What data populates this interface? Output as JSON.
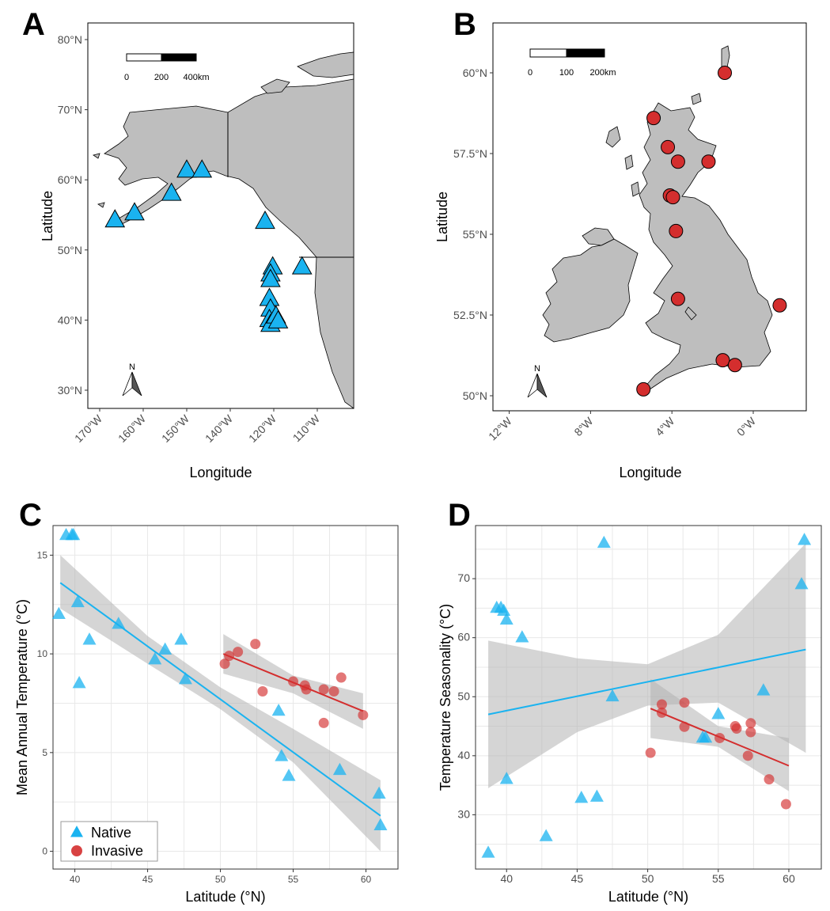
{
  "panels": {
    "a": {
      "label": "A",
      "xlabel": "Longitude",
      "ylabel": "Latitude",
      "xticks": [
        "170°W",
        "160°W",
        "150°W",
        "140°W",
        "120°W",
        "110°W"
      ],
      "yticks": [
        "80°N",
        "70°N",
        "60°N",
        "50°N",
        "40°N",
        "30°N"
      ],
      "scalebar": {
        "l0": "0",
        "l1": "200",
        "l2": "400km"
      }
    },
    "b": {
      "label": "B",
      "xlabel": "Longitude",
      "ylabel": "Latitude",
      "xticks": [
        "12°W",
        "8°W",
        "4°W",
        "0°W"
      ],
      "yticks": [
        "60°N",
        "57.5°N",
        "55°N",
        "52.5°N",
        "50°N"
      ],
      "scalebar": {
        "l0": "0",
        "l1": "100",
        "l2": "200km"
      }
    },
    "c": {
      "label": "C"
    },
    "d": {
      "label": "D"
    }
  },
  "north_arrow": "N",
  "colors": {
    "native": "#1ab3f0",
    "invasive": "#d42e2e",
    "land": "#bebebe",
    "ribbon": "#b3b3b3",
    "grid": "#e8e8e8"
  },
  "chart_data": [
    {
      "panel": "A",
      "type": "scatter",
      "xlabel": "Longitude",
      "ylabel": "Latitude",
      "series": [
        {
          "name": "Native",
          "marker": "triangle",
          "points": [
            [
              -166.5,
              54.2
            ],
            [
              -162,
              55.2
            ],
            [
              -153.5,
              58
            ],
            [
              -150,
              61.3
            ],
            [
              -146.5,
              61.3
            ],
            [
              -124,
              54
            ],
            [
              -120.5,
              47.5
            ],
            [
              -121.5,
              46.5
            ],
            [
              -121.5,
              45.7
            ],
            [
              -122,
              43
            ],
            [
              -121.5,
              41.5
            ],
            [
              -122,
              40
            ],
            [
              -121.5,
              39.3
            ],
            [
              -119.5,
              40.5
            ],
            [
              -119,
              39.8
            ],
            [
              -113.5,
              47.5
            ]
          ]
        }
      ]
    },
    {
      "panel": "B",
      "type": "scatter",
      "xlabel": "Longitude",
      "ylabel": "Latitude",
      "series": [
        {
          "name": "Invasive",
          "marker": "circle",
          "points": [
            [
              -4.9,
              58.6
            ],
            [
              -4.2,
              57.7
            ],
            [
              -3.7,
              57.25
            ],
            [
              -2.2,
              57.25
            ],
            [
              -1.4,
              60.0
            ],
            [
              -4.1,
              56.2
            ],
            [
              -3.95,
              56.15
            ],
            [
              -3.8,
              55.1
            ],
            [
              -3.7,
              53.0
            ],
            [
              1.3,
              52.8
            ],
            [
              -1.5,
              51.1
            ],
            [
              -0.9,
              50.95
            ],
            [
              -5.4,
              50.2
            ]
          ]
        }
      ]
    },
    {
      "panel": "C",
      "type": "scatter",
      "xlabel": "Latitude (°N)",
      "ylabel": "Mean Annual Temperature (°C)",
      "xticks": [
        40,
        45,
        50,
        55,
        60
      ],
      "yticks": [
        0,
        5,
        10,
        15
      ],
      "xlim": [
        38.5,
        62.2
      ],
      "ylim": [
        -0.9,
        16.5
      ],
      "series": [
        {
          "name": "Native",
          "marker": "triangle",
          "points": [
            [
              39.4,
              16.0
            ],
            [
              39.8,
              16.0
            ],
            [
              39.9,
              16.0
            ],
            [
              38.9,
              12.0
            ],
            [
              40.2,
              12.6
            ],
            [
              40.3,
              8.5
            ],
            [
              41.0,
              10.7
            ],
            [
              43.0,
              11.5
            ],
            [
              45.5,
              9.7
            ],
            [
              46.2,
              10.2
            ],
            [
              47.3,
              10.7
            ],
            [
              47.6,
              8.7
            ],
            [
              54.0,
              7.1
            ],
            [
              54.2,
              4.8
            ],
            [
              54.7,
              3.8
            ],
            [
              58.2,
              4.1
            ],
            [
              60.9,
              2.9
            ],
            [
              61.0,
              1.3
            ]
          ],
          "fit": {
            "x0": 39.0,
            "y0": 13.6,
            "x1": 61.0,
            "y1": 1.8
          },
          "ci": {
            "x": [
              39.0,
              45.0,
              50.0,
              55.0,
              61.0
            ],
            "lo": [
              12.3,
              9.5,
              7.2,
              4.5,
              0.0
            ],
            "hi": [
              15.0,
              10.9,
              8.3,
              6.2,
              3.6
            ]
          }
        },
        {
          "name": "Invasive",
          "marker": "circle",
          "points": [
            [
              50.3,
              9.5
            ],
            [
              50.6,
              9.9
            ],
            [
              51.2,
              10.1
            ],
            [
              52.4,
              10.5
            ],
            [
              52.9,
              8.1
            ],
            [
              55.0,
              8.6
            ],
            [
              55.8,
              8.4
            ],
            [
              55.9,
              8.2
            ],
            [
              57.1,
              6.5
            ],
            [
              57.1,
              8.2
            ],
            [
              57.8,
              8.1
            ],
            [
              58.3,
              8.8
            ],
            [
              59.8,
              6.9
            ]
          ],
          "fit": {
            "x0": 50.2,
            "y0": 10.0,
            "x1": 59.8,
            "y1": 7.1
          },
          "ci": {
            "x": [
              50.2,
              55.0,
              59.8
            ],
            "lo": [
              9.0,
              8.0,
              6.2
            ],
            "hi": [
              11.0,
              8.9,
              8.0
            ]
          }
        }
      ],
      "legend": {
        "position": "bottom-left",
        "entries": [
          "Native",
          "Invasive"
        ]
      }
    },
    {
      "panel": "D",
      "type": "scatter",
      "xlabel": "Latitude (°N)",
      "ylabel": "Temperature Seasonality (°C)",
      "xticks": [
        40,
        45,
        50,
        55,
        60
      ],
      "yticks": [
        30,
        40,
        50,
        60,
        70
      ],
      "xlim": [
        37.8,
        62.3
      ],
      "ylim": [
        20.8,
        79.0
      ],
      "series": [
        {
          "name": "Native",
          "marker": "triangle",
          "points": [
            [
              39.3,
              65.0
            ],
            [
              39.6,
              65.0
            ],
            [
              39.8,
              64.5
            ],
            [
              40.0,
              63.0
            ],
            [
              41.1,
              60.0
            ],
            [
              40.0,
              36.0
            ],
            [
              38.7,
              23.5
            ],
            [
              42.8,
              26.3
            ],
            [
              45.3,
              32.8
            ],
            [
              46.4,
              33.0
            ],
            [
              47.5,
              50.0
            ],
            [
              46.9,
              76.0
            ],
            [
              53.9,
              43.0
            ],
            [
              54.1,
              43.0
            ],
            [
              55.0,
              47.0
            ],
            [
              58.2,
              51.0
            ],
            [
              60.9,
              69.0
            ],
            [
              61.1,
              76.5
            ]
          ],
          "fit": {
            "x0": 38.7,
            "y0": 47.0,
            "x1": 61.2,
            "y1": 58.0
          },
          "ci": {
            "x": [
              38.7,
              45.0,
              50.0,
              55.0,
              61.2
            ],
            "lo": [
              34.5,
              44.0,
              48.5,
              49.0,
              40.5
            ],
            "hi": [
              59.5,
              56.5,
              55.5,
              60.5,
              76.0
            ]
          }
        },
        {
          "name": "Invasive",
          "marker": "circle",
          "points": [
            [
              50.2,
              40.5
            ],
            [
              51.0,
              48.7
            ],
            [
              51.0,
              47.3
            ],
            [
              52.6,
              49.0
            ],
            [
              52.6,
              44.9
            ],
            [
              55.1,
              43.0
            ],
            [
              56.2,
              45.0
            ],
            [
              56.3,
              44.6
            ],
            [
              57.1,
              40.0
            ],
            [
              57.3,
              45.5
            ],
            [
              57.3,
              44.0
            ],
            [
              58.6,
              36.0
            ],
            [
              59.8,
              31.8
            ]
          ],
          "fit": {
            "x0": 50.2,
            "y0": 48.0,
            "x1": 60.0,
            "y1": 38.3
          },
          "ci": {
            "x": [
              50.2,
              55.0,
              60.0
            ],
            "lo": [
              43.0,
              41.5,
              34.0
            ],
            "hi": [
              53.0,
              45.0,
              43.0
            ]
          }
        }
      ],
      "legend": {
        "position": "none",
        "entries": []
      }
    }
  ]
}
